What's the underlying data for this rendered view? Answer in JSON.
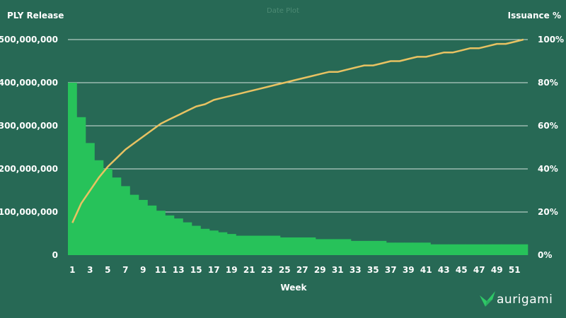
{
  "brand": {
    "logo_icon": "aurigami-bird-icon",
    "name": "aurigami",
    "color": "#2ec866"
  },
  "chart_data": {
    "type": "bar",
    "title": "Date Plot",
    "xlabel": "Week",
    "ylabel_left": "PLY Release",
    "ylabel_right": "Issuance %",
    "ylim_left": [
      0,
      500000000
    ],
    "ylim_right": [
      0,
      100
    ],
    "y_ticks_left": [
      "0",
      "100,000,000",
      "200,000,000",
      "300,000,000",
      "400,000,000",
      "500,000,000"
    ],
    "y_ticks_right": [
      "0%",
      "20%",
      "40%",
      "60%",
      "80%",
      "100%"
    ],
    "x_tick_labels": [
      "1",
      "3",
      "5",
      "7",
      "9",
      "11",
      "13",
      "15",
      "17",
      "19",
      "21",
      "23",
      "25",
      "27",
      "29",
      "31",
      "33",
      "35",
      "37",
      "39",
      "41",
      "43",
      "45",
      "47",
      "49",
      "51"
    ],
    "grid": true,
    "colors": {
      "bars": "#27c25a",
      "line": "#e8c262",
      "grid": "#d6e4dd",
      "background": "#276955"
    },
    "categories": [
      1,
      2,
      3,
      4,
      5,
      6,
      7,
      8,
      9,
      10,
      11,
      12,
      13,
      14,
      15,
      16,
      17,
      18,
      19,
      20,
      21,
      22,
      23,
      24,
      25,
      26,
      27,
      28,
      29,
      30,
      31,
      32,
      33,
      34,
      35,
      36,
      37,
      38,
      39,
      40,
      41,
      42,
      43,
      44,
      45,
      46,
      47,
      48,
      49,
      50,
      51,
      52
    ],
    "series": [
      {
        "name": "PLY Release",
        "type": "bar",
        "axis": "left",
        "values": [
          400000000,
          320000000,
          260000000,
          220000000,
          200000000,
          180000000,
          160000000,
          140000000,
          128000000,
          115000000,
          103000000,
          92000000,
          85000000,
          76000000,
          68000000,
          61000000,
          57000000,
          53000000,
          49000000,
          45000000,
          45000000,
          45000000,
          45000000,
          45000000,
          41000000,
          41000000,
          41000000,
          41000000,
          37000000,
          37000000,
          37000000,
          37000000,
          33000000,
          33000000,
          33000000,
          33000000,
          29000000,
          29000000,
          29000000,
          29000000,
          29000000,
          25000000,
          25000000,
          25000000,
          25000000,
          25000000,
          25000000,
          25000000,
          25000000,
          25000000,
          25000000,
          25000000
        ]
      },
      {
        "name": "Issuance %",
        "type": "line",
        "axis": "right",
        "values": [
          15,
          24,
          30,
          36,
          41,
          45,
          49,
          52,
          55,
          58,
          61,
          63,
          65,
          67,
          69,
          70,
          72,
          73,
          74,
          75,
          76,
          77,
          78,
          79,
          80,
          81,
          82,
          83,
          84,
          85,
          85,
          86,
          87,
          88,
          88,
          89,
          90,
          90,
          91,
          92,
          92,
          93,
          94,
          94,
          95,
          96,
          96,
          97,
          98,
          98,
          99,
          100
        ]
      }
    ]
  }
}
